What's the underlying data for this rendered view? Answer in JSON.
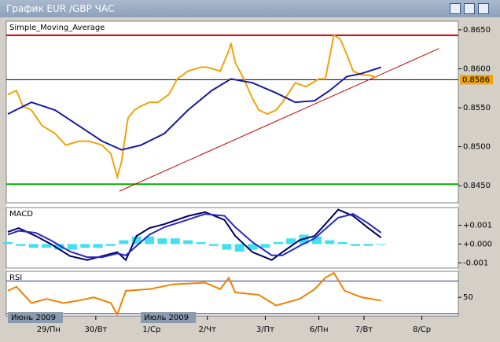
{
  "window": {
    "title": "График EUR /GBP  ЧАС"
  },
  "time_axis": {
    "xlim": [
      0,
      210
    ],
    "xticks": [
      {
        "value": 19,
        "label": "29/Пн"
      },
      {
        "value": 41,
        "label": "30/Вт"
      },
      {
        "value": 67,
        "label": "1/Ср"
      },
      {
        "value": 93,
        "label": "2/Чт"
      },
      {
        "value": 120,
        "label": "3/Пт"
      },
      {
        "value": 145,
        "label": "6/Пн"
      },
      {
        "value": 166,
        "label": "7/Вт"
      },
      {
        "value": 193,
        "label": "8/Ср"
      }
    ],
    "month_labels": [
      {
        "value": 0,
        "label": "Июнь 2009"
      },
      {
        "value": 62,
        "label": "Июль 2009"
      }
    ]
  },
  "chart_data": [
    {
      "type": "line",
      "title": "Simple_Moving_Average",
      "ylim": [
        0.8428,
        0.8661
      ],
      "yticks": [
        {
          "value": 0.865,
          "label": "0.8650"
        },
        {
          "value": 0.86,
          "label": "0.8600"
        },
        {
          "value": 0.855,
          "label": "0.8550"
        },
        {
          "value": 0.85,
          "label": "0.8500"
        },
        {
          "value": 0.845,
          "label": "0.8450"
        }
      ],
      "series": [
        {
          "color": "#f0a30a",
          "x": [
            0,
            4,
            7,
            11,
            16,
            22,
            27,
            33,
            38,
            44,
            48,
            51,
            53,
            56,
            59,
            62,
            66,
            70,
            75,
            79,
            84,
            90,
            93,
            99,
            103,
            104,
            106,
            110,
            114,
            117,
            121,
            125,
            128,
            134,
            139,
            145,
            148,
            152,
            155,
            158,
            161,
            165,
            168,
            172
          ],
          "values": [
            0.8567,
            0.8572,
            0.8552,
            0.8547,
            0.8527,
            0.8517,
            0.8502,
            0.8507,
            0.8507,
            0.8502,
            0.8491,
            0.8461,
            0.8481,
            0.8537,
            0.8547,
            0.8552,
            0.8557,
            0.8557,
            0.8567,
            0.8587,
            0.8597,
            0.8602,
            0.8602,
            0.8597,
            0.8623,
            0.8633,
            0.8608,
            0.8587,
            0.8562,
            0.8547,
            0.8542,
            0.8547,
            0.8557,
            0.8582,
            0.8577,
            0.8587,
            0.8587,
            0.8643,
            0.8638,
            0.8618,
            0.8597,
            0.8592,
            0.8592,
            0.8589
          ]
        },
        {
          "color": "#1a1aa0",
          "x": [
            0,
            11,
            22,
            33,
            44,
            53,
            62,
            73,
            84,
            95,
            104,
            114,
            125,
            134,
            143,
            150,
            158,
            165,
            174
          ],
          "values": [
            0.8542,
            0.8557,
            0.8547,
            0.8527,
            0.8507,
            0.8496,
            0.8502,
            0.8517,
            0.8547,
            0.8572,
            0.8587,
            0.8582,
            0.8569,
            0.8557,
            0.8559,
            0.8572,
            0.859,
            0.8594,
            0.8602
          ]
        }
      ],
      "hlines": [
        {
          "value": 0.8643,
          "color": "#c00000"
        },
        {
          "value": 0.8586,
          "color": "#000000"
        },
        {
          "value": 0.8452,
          "color": "#00b000"
        }
      ],
      "trendline": {
        "x": [
          52,
          201
        ],
        "values": [
          0.8443,
          0.8626
        ],
        "color": "#c00000"
      },
      "last_price": {
        "value": 0.8586,
        "color": "#f0a30a"
      }
    },
    {
      "type": "line",
      "title": "MACD",
      "ylim": [
        -0.00128,
        0.00194
      ],
      "yticks": [
        {
          "value": 0.001,
          "label": "+0.001"
        },
        {
          "value": 0,
          "label": "+0.000"
        },
        {
          "value": -0.001,
          "label": "-0.001"
        }
      ],
      "series": [
        {
          "type": "bar",
          "color": "#40e0f0",
          "x": [
            0,
            6,
            12,
            18,
            24,
            30,
            36,
            42,
            48,
            54,
            60,
            66,
            72,
            78,
            84,
            90,
            96,
            102,
            108,
            114,
            120,
            126,
            132,
            138,
            144,
            150,
            156,
            162,
            168,
            174
          ],
          "values": [
            0.0001,
            -0.0001,
            -0.0002,
            -0.0002,
            -0.0003,
            -0.0003,
            -0.0002,
            -0.0002,
            -0.0001,
            0.0002,
            0.0004,
            0.0004,
            0.0003,
            0.0003,
            0.0002,
            0.0001,
            -0.0001,
            -0.0003,
            -0.0004,
            -0.0003,
            -0.0002,
            0.0001,
            0.0003,
            0.0005,
            0.0004,
            0.0002,
            0.0001,
            -0.0001,
            -0.0001,
            0
          ]
        },
        {
          "color": "#000060",
          "x": [
            0,
            5,
            13,
            20,
            29,
            37,
            44,
            51,
            55,
            60,
            66,
            73,
            84,
            92,
            101,
            106,
            114,
            123,
            128,
            136,
            143,
            148,
            154,
            161,
            168,
            174
          ],
          "values": [
            0.00064,
            0.00085,
            0.00043,
            0,
            -0.00064,
            -0.00085,
            -0.00064,
            -0.00043,
            -0.00085,
            0.00043,
            0.00085,
            0.00106,
            0.00149,
            0.0017,
            0.00128,
            0.00043,
            -0.00043,
            -0.00085,
            -0.00043,
            0.00021,
            0.00043,
            0.00106,
            0.00183,
            0.00149,
            0.00085,
            0.00034
          ]
        },
        {
          "color": "#2828c8",
          "x": [
            0,
            5,
            13,
            20,
            29,
            37,
            44,
            51,
            55,
            60,
            66,
            73,
            84,
            92,
            101,
            106,
            114,
            123,
            128,
            136,
            143,
            148,
            154,
            161,
            168,
            174
          ],
          "values": [
            0.0005,
            0.0007,
            0.0006,
            0.0002,
            -0.0004,
            -0.0007,
            -0.0007,
            -0.0005,
            -0.0006,
            -0.0001,
            0.0005,
            0.0009,
            0.0013,
            0.0016,
            0.0015,
            0.0009,
            0.0001,
            -0.0006,
            -0.0006,
            -0.0001,
            0.0003,
            0.0008,
            0.0014,
            0.0016,
            0.0011,
            0.0006
          ]
        }
      ]
    },
    {
      "type": "line",
      "title": "RSI",
      "ylim": [
        27,
        82
      ],
      "yticks": [
        50
      ],
      "levels": [
        30,
        70
      ],
      "series": [
        {
          "color": "#f08000",
          "x": [
            0,
            4,
            11,
            18,
            26,
            33,
            40,
            48,
            51,
            55,
            66,
            77,
            92,
            99,
            103,
            106,
            117,
            125,
            136,
            143,
            148,
            152,
            157,
            165,
            174
          ],
          "values": [
            58,
            63,
            43,
            48,
            43,
            46,
            50,
            43,
            29,
            58,
            60,
            66,
            68,
            60,
            74,
            56,
            53,
            40,
            48,
            60,
            74,
            80,
            58,
            50,
            46
          ]
        }
      ]
    }
  ]
}
